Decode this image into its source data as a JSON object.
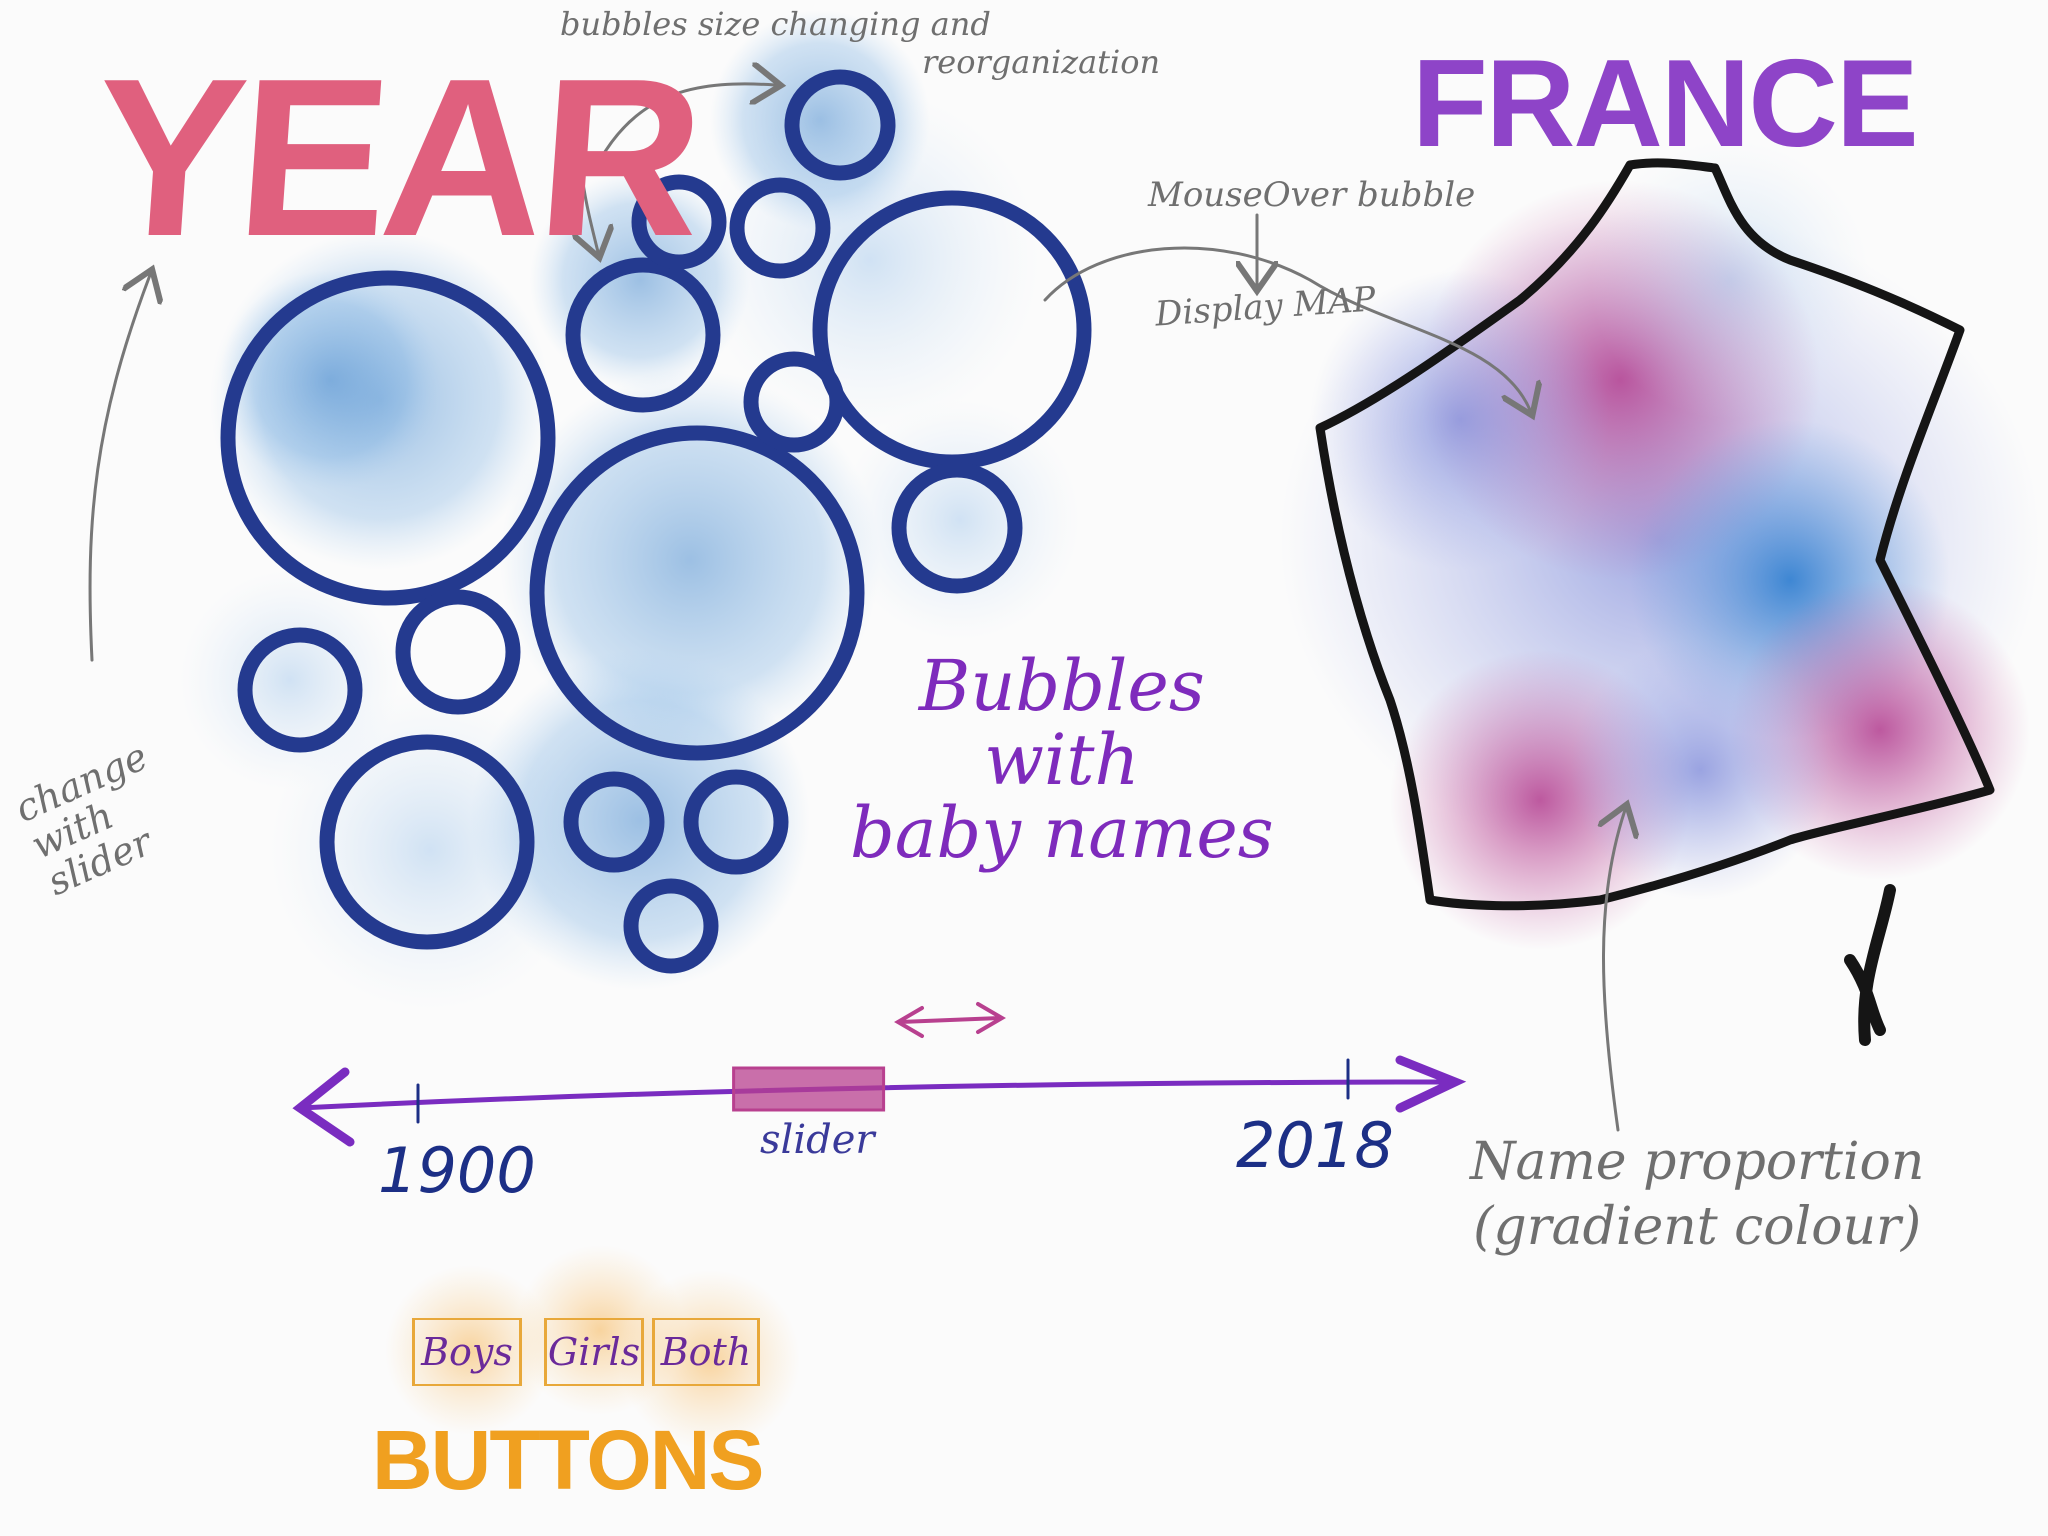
{
  "title": "YEAR",
  "map_title": "FRANCE",
  "notes": {
    "bubble_change_line1": "bubbles size changing and",
    "bubble_change_line2": "reorganization",
    "mouseover": "MouseOver bubble",
    "display_map": "Display MAP",
    "change_with_slider_line1": "change",
    "change_with_slider_line2": "with",
    "change_with_slider_line3": "slider",
    "name_proportion_line1": "Name proportion",
    "name_proportion_line2": "(gradient colour)"
  },
  "bubbles_label": {
    "line1": "Bubbles",
    "line2": "with",
    "line3": "baby names"
  },
  "timeline": {
    "start_label": "1900",
    "end_label": "2018",
    "slider_label": "slider",
    "slider_position_fraction": 0.42
  },
  "buttons": {
    "boys": "Boys",
    "girls": "Girls",
    "both": "Both",
    "title": "BUTTONS"
  },
  "colors": {
    "bubble_outline": "#243a8f",
    "bubble_wash": "#5d9bd6",
    "title_pink": "#e0607e",
    "title_purple": "#8e44c8",
    "map_magenta": "#b43e8f",
    "map_blue": "#3d7fcc",
    "button_orange": "#f0a020"
  }
}
